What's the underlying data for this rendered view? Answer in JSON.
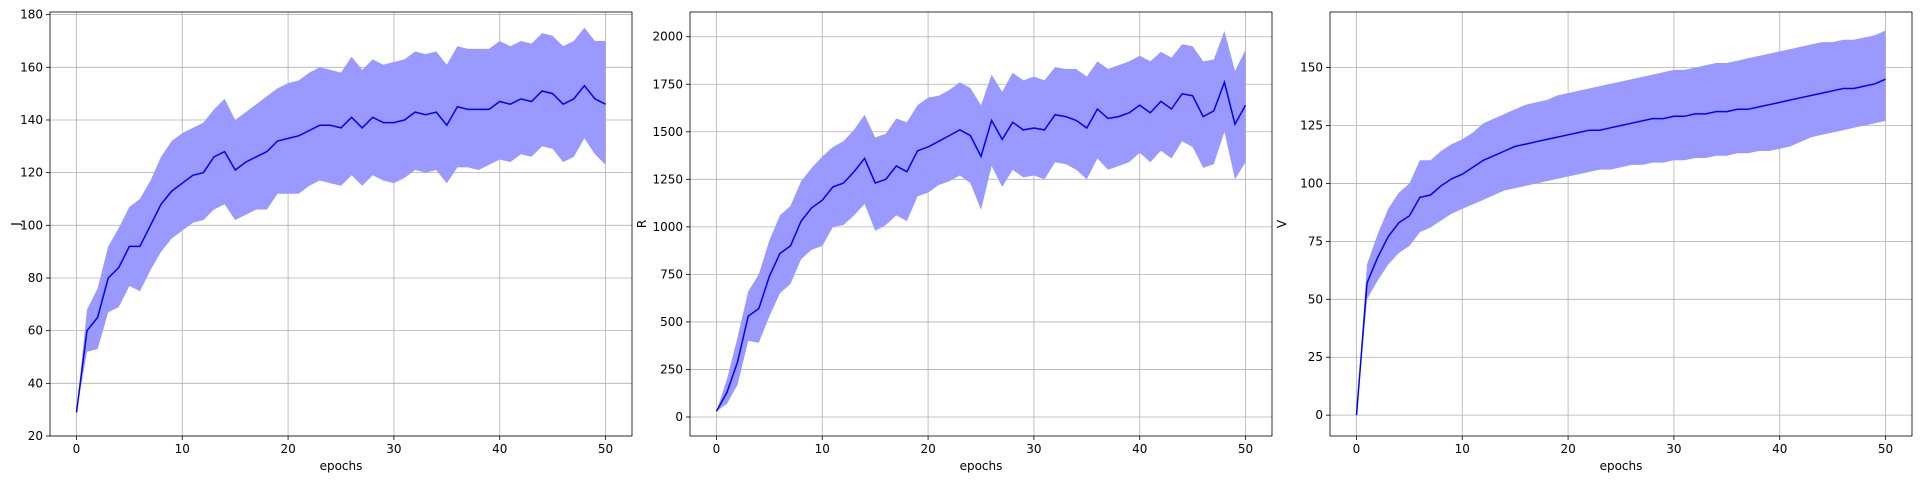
{
  "colors": {
    "line": "#0000ff",
    "band": "#9999ff",
    "grid": "#b0b0b0"
  },
  "chart_data": [
    {
      "type": "line",
      "xlabel": "epochs",
      "ylabel": "J",
      "xlim": [
        -2.5,
        52.5
      ],
      "ylim": [
        20,
        181
      ],
      "xticks": [
        0,
        10,
        20,
        30,
        40,
        50
      ],
      "yticks": [
        20,
        40,
        60,
        80,
        100,
        120,
        140,
        160,
        180
      ],
      "grid": true,
      "x": [
        0,
        1,
        2,
        3,
        4,
        5,
        6,
        7,
        8,
        9,
        10,
        11,
        12,
        13,
        14,
        15,
        16,
        17,
        18,
        19,
        20,
        21,
        22,
        23,
        24,
        25,
        26,
        27,
        28,
        29,
        30,
        31,
        32,
        33,
        34,
        35,
        36,
        37,
        38,
        39,
        40,
        41,
        42,
        43,
        44,
        45,
        46,
        47,
        48,
        49,
        50
      ],
      "series": [
        {
          "values": [
            29,
            60,
            65,
            80,
            84,
            92,
            92,
            100,
            108,
            113,
            116,
            119,
            120,
            126,
            128,
            121,
            124,
            126,
            128,
            132,
            133,
            134,
            136,
            138,
            138,
            137,
            141,
            137,
            141,
            139,
            139,
            140,
            143,
            142,
            143,
            138,
            145,
            144,
            144,
            144,
            147,
            146,
            148,
            147,
            151,
            150,
            146,
            148,
            153,
            148,
            146
          ],
          "lower": [
            29,
            52,
            53,
            67,
            69,
            77,
            75,
            83,
            90,
            95,
            98,
            101,
            102,
            106,
            108,
            102,
            104,
            106,
            106,
            112,
            112,
            112,
            115,
            117,
            116,
            115,
            119,
            115,
            119,
            117,
            116,
            118,
            121,
            120,
            121,
            116,
            122,
            122,
            121,
            123,
            125,
            124,
            127,
            126,
            130,
            129,
            124,
            126,
            133,
            127,
            123
          ],
          "upper": [
            29,
            68,
            76,
            92,
            99,
            107,
            110,
            117,
            126,
            132,
            135,
            137,
            139,
            144,
            148,
            140,
            143,
            146,
            149,
            152,
            154,
            155,
            158,
            160,
            159,
            158,
            164,
            159,
            163,
            161,
            162,
            163,
            166,
            165,
            166,
            161,
            168,
            167,
            167,
            167,
            170,
            168,
            170,
            169,
            173,
            172,
            168,
            170,
            175,
            170,
            170
          ]
        }
      ]
    },
    {
      "type": "line",
      "xlabel": "epochs",
      "ylabel": "R",
      "xlim": [
        -2.5,
        52.5
      ],
      "ylim": [
        -100,
        2130
      ],
      "xticks": [
        0,
        10,
        20,
        30,
        40,
        50
      ],
      "yticks": [
        0,
        250,
        500,
        750,
        1000,
        1250,
        1500,
        1750,
        2000
      ],
      "grid": true,
      "x": [
        0,
        1,
        2,
        3,
        4,
        5,
        6,
        7,
        8,
        9,
        10,
        11,
        12,
        13,
        14,
        15,
        16,
        17,
        18,
        19,
        20,
        21,
        22,
        23,
        24,
        25,
        26,
        27,
        28,
        29,
        30,
        31,
        32,
        33,
        34,
        35,
        36,
        37,
        38,
        39,
        40,
        41,
        42,
        43,
        44,
        45,
        46,
        47,
        48,
        49,
        50
      ],
      "series": [
        {
          "values": [
            30,
            130,
            290,
            530,
            570,
            740,
            860,
            900,
            1030,
            1100,
            1140,
            1210,
            1230,
            1290,
            1360,
            1230,
            1250,
            1320,
            1290,
            1400,
            1420,
            1450,
            1480,
            1510,
            1480,
            1370,
            1560,
            1460,
            1550,
            1510,
            1520,
            1510,
            1590,
            1580,
            1560,
            1520,
            1620,
            1570,
            1580,
            1600,
            1640,
            1600,
            1660,
            1620,
            1700,
            1690,
            1580,
            1610,
            1760,
            1540,
            1640
          ],
          "lower": [
            30,
            70,
            170,
            400,
            390,
            530,
            650,
            700,
            830,
            880,
            900,
            1000,
            1010,
            1060,
            1120,
            980,
            1010,
            1060,
            1030,
            1160,
            1180,
            1220,
            1240,
            1270,
            1230,
            1090,
            1320,
            1210,
            1300,
            1260,
            1270,
            1250,
            1340,
            1330,
            1300,
            1250,
            1360,
            1300,
            1320,
            1340,
            1390,
            1340,
            1400,
            1360,
            1450,
            1420,
            1310,
            1330,
            1500,
            1250,
            1340
          ],
          "upper": [
            30,
            200,
            420,
            660,
            750,
            930,
            1060,
            1110,
            1240,
            1310,
            1370,
            1420,
            1450,
            1510,
            1590,
            1470,
            1490,
            1570,
            1550,
            1640,
            1680,
            1690,
            1720,
            1760,
            1730,
            1640,
            1800,
            1710,
            1810,
            1770,
            1790,
            1770,
            1840,
            1830,
            1830,
            1790,
            1870,
            1830,
            1850,
            1870,
            1900,
            1870,
            1920,
            1890,
            1960,
            1950,
            1870,
            1880,
            2030,
            1820,
            1930
          ]
        }
      ]
    },
    {
      "type": "line",
      "xlabel": "epochs",
      "ylabel": "V",
      "xlim": [
        -2.5,
        52.5
      ],
      "ylim": [
        -9,
        174
      ],
      "xticks": [
        0,
        10,
        20,
        30,
        40,
        50
      ],
      "yticks": [
        0,
        25,
        50,
        75,
        100,
        125,
        150
      ],
      "grid": true,
      "x": [
        0,
        1,
        2,
        3,
        4,
        5,
        6,
        7,
        8,
        9,
        10,
        11,
        12,
        13,
        14,
        15,
        16,
        17,
        18,
        19,
        20,
        21,
        22,
        23,
        24,
        25,
        26,
        27,
        28,
        29,
        30,
        31,
        32,
        33,
        34,
        35,
        36,
        37,
        38,
        39,
        40,
        41,
        42,
        43,
        44,
        45,
        46,
        47,
        48,
        49,
        50
      ],
      "series": [
        {
          "values": [
            0,
            57,
            68,
            77,
            83,
            86,
            94,
            95,
            99,
            102,
            104,
            107,
            110,
            112,
            114,
            116,
            117,
            118,
            119,
            120,
            121,
            122,
            123,
            123,
            124,
            125,
            126,
            127,
            128,
            128,
            129,
            129,
            130,
            130,
            131,
            131,
            132,
            132,
            133,
            134,
            135,
            136,
            137,
            138,
            139,
            140,
            141,
            141,
            142,
            143,
            145
          ],
          "lower": [
            0,
            50,
            58,
            65,
            70,
            73,
            79,
            81,
            84,
            87,
            89,
            91,
            93,
            95,
            97,
            98,
            99,
            100,
            101,
            102,
            103,
            104,
            105,
            106,
            106,
            107,
            108,
            108,
            109,
            109,
            110,
            110,
            111,
            111,
            112,
            112,
            113,
            113,
            114,
            114,
            115,
            116,
            118,
            120,
            121,
            122,
            123,
            124,
            125,
            126,
            127
          ],
          "upper": [
            0,
            65,
            78,
            89,
            96,
            100,
            110,
            110,
            114,
            117,
            119,
            122,
            126,
            128,
            130,
            132,
            134,
            135,
            136,
            138,
            139,
            140,
            141,
            142,
            143,
            144,
            145,
            146,
            147,
            148,
            149,
            149,
            150,
            151,
            152,
            152,
            153,
            154,
            155,
            156,
            157,
            158,
            159,
            160,
            161,
            161,
            162,
            162,
            163,
            164,
            166
          ]
        }
      ]
    }
  ]
}
